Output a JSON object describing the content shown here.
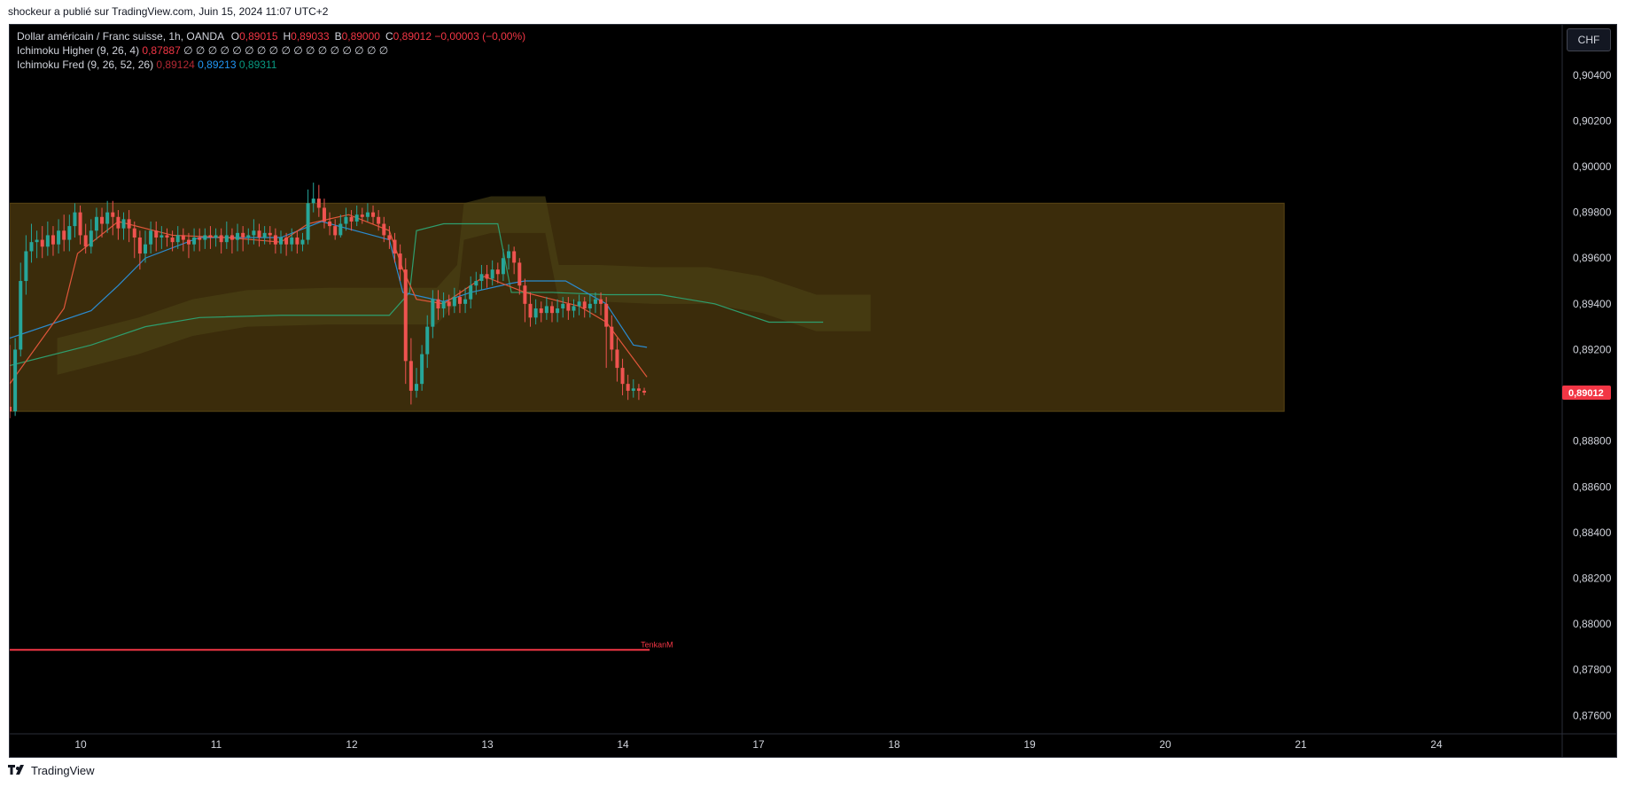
{
  "header": {
    "publisher_line": "shockeur a publié sur TradingView.com, Juin 15, 2024 11:07 UTC+2"
  },
  "legend": {
    "symbol": "Dollar américain / Franc suisse, 1h, OANDA",
    "ohlc": [
      {
        "label": "O",
        "value": "0,89015"
      },
      {
        "label": "H",
        "value": "0,89033"
      },
      {
        "label": "B",
        "value": "0,89000"
      },
      {
        "label": "C",
        "value": "0,89012"
      }
    ],
    "change": "−0,00003 (−0,00%)",
    "ind1_name": "Ichimoku Higher (9, 26, 4)",
    "ind1_value": "0,87887",
    "ind1_placeholders": "∅ ∅ ∅ ∅ ∅ ∅ ∅ ∅ ∅ ∅ ∅ ∅ ∅ ∅ ∅ ∅ ∅",
    "ind2_name": "Ichimoku Fred (9, 26, 52, 26)",
    "ind2_values": [
      "0,89124",
      "0,89213",
      "0,89311"
    ]
  },
  "currency_button": "CHF",
  "footer": {
    "brand": "TradingView"
  },
  "colors": {
    "up": "#26a69a",
    "down": "#ef5350",
    "zone": "#3e2e0c",
    "price_label": "#f23645",
    "tenkan": "#e0563a",
    "kijun": "#2b8bd0",
    "lagging": "#2e9e6e"
  },
  "chart_data": {
    "type": "candlestick",
    "title": "Dollar américain / Franc suisse, 1h, OANDA",
    "x_ticks": [
      "10",
      "11",
      "12",
      "13",
      "14",
      "17",
      "18",
      "19",
      "20",
      "21",
      "24"
    ],
    "y_ticks": [
      "0,90400",
      "0,90200",
      "0,90000",
      "0,89800",
      "0,89600",
      "0,89400",
      "0,89200",
      "0,88800",
      "0,88600",
      "0,88400",
      "0,88200",
      "0,88000",
      "0,87800",
      "0,87600"
    ],
    "y_tick_values": [
      0.904,
      0.902,
      0.9,
      0.898,
      0.896,
      0.894,
      0.892,
      0.888,
      0.886,
      0.884,
      0.882,
      0.88,
      0.878,
      0.876
    ],
    "ylim": [
      0.8752,
      0.9062
    ],
    "last_price": 0.89012,
    "last_price_label": "0,89012",
    "zone": {
      "from_day": 0.0,
      "to_day": 9.4,
      "low": 0.8893,
      "high": 0.8984
    },
    "tenkan_label": "TenkanM",
    "tenkan_level": 0.87887,
    "candles": [
      [
        0.0,
        0.8895,
        0.8893,
        0.8922,
        0.889
      ],
      [
        0.04,
        0.8893,
        0.892,
        0.8925,
        0.8891
      ],
      [
        0.08,
        0.892,
        0.895,
        0.8958,
        0.8917
      ],
      [
        0.12,
        0.895,
        0.8963,
        0.897,
        0.8944
      ],
      [
        0.16,
        0.8963,
        0.8967,
        0.8975,
        0.8958
      ],
      [
        0.2,
        0.8967,
        0.8968,
        0.8972,
        0.896
      ],
      [
        0.24,
        0.8968,
        0.8965,
        0.8974,
        0.896
      ],
      [
        0.28,
        0.8965,
        0.897,
        0.8976,
        0.8961
      ],
      [
        0.32,
        0.897,
        0.8966,
        0.8974,
        0.8961
      ],
      [
        0.36,
        0.8966,
        0.8972,
        0.8977,
        0.8962
      ],
      [
        0.4,
        0.8972,
        0.8968,
        0.8979,
        0.8963
      ],
      [
        0.44,
        0.8968,
        0.8974,
        0.8979,
        0.8963
      ],
      [
        0.48,
        0.8974,
        0.898,
        0.8984,
        0.8969
      ],
      [
        0.52,
        0.898,
        0.897,
        0.8983,
        0.8966
      ],
      [
        0.56,
        0.897,
        0.8965,
        0.8975,
        0.8962
      ],
      [
        0.6,
        0.8965,
        0.8972,
        0.8977,
        0.8962
      ],
      [
        0.64,
        0.8972,
        0.8978,
        0.8982,
        0.8968
      ],
      [
        0.68,
        0.8978,
        0.8975,
        0.8982,
        0.8969
      ],
      [
        0.72,
        0.8975,
        0.898,
        0.8985,
        0.8971
      ],
      [
        0.76,
        0.898,
        0.8978,
        0.8985,
        0.897
      ],
      [
        0.8,
        0.8978,
        0.8973,
        0.8981,
        0.8968
      ],
      [
        0.84,
        0.8973,
        0.8977,
        0.898,
        0.8968
      ],
      [
        0.88,
        0.8977,
        0.8973,
        0.8981,
        0.8967
      ],
      [
        0.92,
        0.8973,
        0.8969,
        0.8976,
        0.896
      ],
      [
        0.96,
        0.8969,
        0.8962,
        0.8972,
        0.8955
      ],
      [
        1.0,
        0.8962,
        0.8966,
        0.8972,
        0.8958
      ],
      [
        1.04,
        0.8966,
        0.8972,
        0.8976,
        0.8962
      ],
      [
        1.08,
        0.8972,
        0.8969,
        0.8976,
        0.8963
      ],
      [
        1.12,
        0.8969,
        0.897,
        0.8974,
        0.8964
      ],
      [
        1.16,
        0.897,
        0.8969,
        0.8973,
        0.8965
      ],
      [
        1.2,
        0.8969,
        0.8967,
        0.8972,
        0.8963
      ],
      [
        1.24,
        0.8967,
        0.897,
        0.8974,
        0.8964
      ],
      [
        1.28,
        0.897,
        0.8968,
        0.8973,
        0.8963
      ],
      [
        1.32,
        0.8968,
        0.8966,
        0.8971,
        0.896
      ],
      [
        1.36,
        0.8966,
        0.8969,
        0.8973,
        0.8963
      ],
      [
        1.4,
        0.8969,
        0.8968,
        0.8973,
        0.8963
      ],
      [
        1.44,
        0.8968,
        0.897,
        0.8973,
        0.8964
      ],
      [
        1.48,
        0.897,
        0.8969,
        0.8974,
        0.8964
      ],
      [
        1.52,
        0.8969,
        0.897,
        0.8973,
        0.8965
      ],
      [
        1.56,
        0.897,
        0.8967,
        0.8973,
        0.8962
      ],
      [
        1.6,
        0.8967,
        0.897,
        0.8976,
        0.8964
      ],
      [
        1.64,
        0.897,
        0.8968,
        0.8973,
        0.8962
      ],
      [
        1.68,
        0.8968,
        0.8971,
        0.8975,
        0.8963
      ],
      [
        1.72,
        0.8971,
        0.8969,
        0.8974,
        0.8963
      ],
      [
        1.76,
        0.8969,
        0.897,
        0.8973,
        0.8966
      ],
      [
        1.8,
        0.897,
        0.8972,
        0.8977,
        0.8966
      ],
      [
        1.84,
        0.8972,
        0.8969,
        0.8975,
        0.8965
      ],
      [
        1.88,
        0.8969,
        0.8971,
        0.8974,
        0.8966
      ],
      [
        1.92,
        0.8971,
        0.897,
        0.8974,
        0.8966
      ],
      [
        1.96,
        0.897,
        0.8966,
        0.8973,
        0.8962
      ],
      [
        2.0,
        0.8966,
        0.8969,
        0.8972,
        0.8962
      ],
      [
        2.04,
        0.8969,
        0.8966,
        0.8971,
        0.8961
      ],
      [
        2.08,
        0.8966,
        0.8969,
        0.8973,
        0.8963
      ],
      [
        2.12,
        0.8969,
        0.8966,
        0.8972,
        0.8962
      ],
      [
        2.16,
        0.8966,
        0.8968,
        0.8971,
        0.8963
      ],
      [
        2.2,
        0.8968,
        0.8984,
        0.899,
        0.8966
      ],
      [
        2.24,
        0.8984,
        0.8986,
        0.8993,
        0.898
      ],
      [
        2.28,
        0.8986,
        0.8982,
        0.8992,
        0.8978
      ],
      [
        2.32,
        0.8982,
        0.8976,
        0.8986,
        0.8973
      ],
      [
        2.36,
        0.8976,
        0.8974,
        0.898,
        0.897
      ],
      [
        2.4,
        0.8974,
        0.897,
        0.8977,
        0.8968
      ],
      [
        2.44,
        0.897,
        0.8975,
        0.8979,
        0.8969
      ],
      [
        2.48,
        0.8975,
        0.8978,
        0.8982,
        0.8972
      ],
      [
        2.52,
        0.8978,
        0.8976,
        0.8981,
        0.8972
      ],
      [
        2.56,
        0.8976,
        0.8979,
        0.8983,
        0.8974
      ],
      [
        2.6,
        0.8979,
        0.8978,
        0.8982,
        0.8975
      ],
      [
        2.64,
        0.8978,
        0.898,
        0.8984,
        0.8976
      ],
      [
        2.68,
        0.898,
        0.8978,
        0.8983,
        0.8975
      ],
      [
        2.72,
        0.8978,
        0.8975,
        0.8981,
        0.8972
      ],
      [
        2.76,
        0.8975,
        0.897,
        0.8978,
        0.8967
      ],
      [
        2.8,
        0.897,
        0.8968,
        0.8974,
        0.8964
      ],
      [
        2.84,
        0.8968,
        0.8962,
        0.8971,
        0.8958
      ],
      [
        2.88,
        0.8962,
        0.8955,
        0.8966,
        0.895
      ],
      [
        2.92,
        0.8955,
        0.8915,
        0.896,
        0.8905
      ],
      [
        2.96,
        0.8915,
        0.8902,
        0.8925,
        0.8896
      ],
      [
        3.0,
        0.8902,
        0.8905,
        0.8912,
        0.8899
      ],
      [
        3.04,
        0.8905,
        0.8918,
        0.8922,
        0.8902
      ],
      [
        3.08,
        0.8918,
        0.893,
        0.8935,
        0.8912
      ],
      [
        3.12,
        0.893,
        0.8942,
        0.8946,
        0.8925
      ],
      [
        3.16,
        0.8942,
        0.8938,
        0.8946,
        0.8933
      ],
      [
        3.2,
        0.8938,
        0.8941,
        0.8945,
        0.8934
      ],
      [
        3.24,
        0.8941,
        0.8939,
        0.8944,
        0.8935
      ],
      [
        3.28,
        0.8939,
        0.8943,
        0.8947,
        0.8936
      ],
      [
        3.32,
        0.8943,
        0.894,
        0.8946,
        0.8936
      ],
      [
        3.36,
        0.894,
        0.8942,
        0.8947,
        0.8936
      ],
      [
        3.4,
        0.8942,
        0.8948,
        0.8952,
        0.8938
      ],
      [
        3.44,
        0.8948,
        0.895,
        0.8954,
        0.8944
      ],
      [
        3.48,
        0.895,
        0.8953,
        0.8957,
        0.8946
      ],
      [
        3.52,
        0.8953,
        0.8951,
        0.8957,
        0.8947
      ],
      [
        3.56,
        0.8951,
        0.8955,
        0.8959,
        0.8948
      ],
      [
        3.6,
        0.8955,
        0.8953,
        0.8958,
        0.8949
      ],
      [
        3.64,
        0.8953,
        0.896,
        0.8964,
        0.895
      ],
      [
        3.68,
        0.896,
        0.8963,
        0.8966,
        0.8955
      ],
      [
        3.72,
        0.8963,
        0.8958,
        0.8965,
        0.8953
      ],
      [
        3.76,
        0.8958,
        0.8948,
        0.896,
        0.8944
      ],
      [
        3.8,
        0.8948,
        0.894,
        0.8951,
        0.8932
      ],
      [
        3.84,
        0.894,
        0.8934,
        0.8945,
        0.893
      ],
      [
        3.88,
        0.8934,
        0.8938,
        0.8942,
        0.8931
      ],
      [
        3.92,
        0.8938,
        0.8936,
        0.8941,
        0.8932
      ],
      [
        3.96,
        0.8936,
        0.8939,
        0.8943,
        0.8933
      ],
      [
        4.0,
        0.8939,
        0.8936,
        0.8941,
        0.8932
      ],
      [
        4.04,
        0.8936,
        0.8938,
        0.8942,
        0.8932
      ],
      [
        4.08,
        0.8938,
        0.894,
        0.8943,
        0.8934
      ],
      [
        4.12,
        0.894,
        0.8937,
        0.8943,
        0.8933
      ],
      [
        4.16,
        0.8937,
        0.8939,
        0.8942,
        0.8934
      ],
      [
        4.2,
        0.8939,
        0.8941,
        0.8944,
        0.8935
      ],
      [
        4.24,
        0.8941,
        0.8938,
        0.8943,
        0.8934
      ],
      [
        4.28,
        0.8938,
        0.894,
        0.8944,
        0.8934
      ],
      [
        4.32,
        0.894,
        0.8942,
        0.8945,
        0.8936
      ],
      [
        4.36,
        0.8942,
        0.894,
        0.8945,
        0.8935
      ],
      [
        4.4,
        0.894,
        0.893,
        0.8943,
        0.8912
      ],
      [
        4.44,
        0.893,
        0.892,
        0.8935,
        0.8915
      ],
      [
        4.48,
        0.892,
        0.8912,
        0.8925,
        0.8906
      ],
      [
        4.52,
        0.8912,
        0.8905,
        0.8916,
        0.89
      ],
      [
        4.56,
        0.8905,
        0.8902,
        0.8909,
        0.8898
      ],
      [
        4.6,
        0.8902,
        0.8903,
        0.8907,
        0.8899
      ],
      [
        4.64,
        0.8903,
        0.8902,
        0.8905,
        0.8898
      ],
      [
        4.68,
        0.8902,
        0.89012,
        0.89033,
        0.89
      ]
    ],
    "tenkan": [
      [
        0.0,
        0.8905
      ],
      [
        0.4,
        0.8938
      ],
      [
        0.5,
        0.8962
      ],
      [
        0.8,
        0.8976
      ],
      [
        1.2,
        0.897
      ],
      [
        1.6,
        0.8969
      ],
      [
        2.0,
        0.8967
      ],
      [
        2.2,
        0.8975
      ],
      [
        2.5,
        0.8979
      ],
      [
        2.8,
        0.8972
      ],
      [
        2.9,
        0.8955
      ],
      [
        3.0,
        0.8942
      ],
      [
        3.2,
        0.894
      ],
      [
        3.5,
        0.8952
      ],
      [
        3.8,
        0.8945
      ],
      [
        4.2,
        0.8939
      ],
      [
        4.4,
        0.8932
      ],
      [
        4.6,
        0.8916
      ],
      [
        4.7,
        0.8908
      ]
    ],
    "kijun": [
      [
        0.0,
        0.8925
      ],
      [
        0.6,
        0.8937
      ],
      [
        0.8,
        0.8948
      ],
      [
        1.0,
        0.896
      ],
      [
        1.4,
        0.8969
      ],
      [
        2.0,
        0.8969
      ],
      [
        2.3,
        0.8976
      ],
      [
        2.8,
        0.8968
      ],
      [
        2.9,
        0.8945
      ],
      [
        3.2,
        0.8941
      ],
      [
        3.4,
        0.8945
      ],
      [
        3.7,
        0.8949
      ],
      [
        3.8,
        0.895
      ],
      [
        4.1,
        0.895
      ],
      [
        4.4,
        0.894
      ],
      [
        4.6,
        0.8922
      ],
      [
        4.7,
        0.8921
      ]
    ],
    "lagging": [
      [
        0.0,
        0.8913
      ],
      [
        0.6,
        0.8922
      ],
      [
        1.0,
        0.893
      ],
      [
        1.4,
        0.8934
      ],
      [
        2.0,
        0.8935
      ],
      [
        2.4,
        0.8935
      ],
      [
        2.8,
        0.8935
      ],
      [
        2.95,
        0.8945
      ],
      [
        3.0,
        0.8972
      ],
      [
        3.2,
        0.8975
      ],
      [
        3.6,
        0.8975
      ],
      [
        3.7,
        0.8945
      ],
      [
        4.0,
        0.8945
      ],
      [
        4.4,
        0.8944
      ],
      [
        4.8,
        0.8944
      ],
      [
        5.2,
        0.894
      ],
      [
        5.6,
        0.8932
      ],
      [
        6.0,
        0.8932
      ]
    ]
  }
}
